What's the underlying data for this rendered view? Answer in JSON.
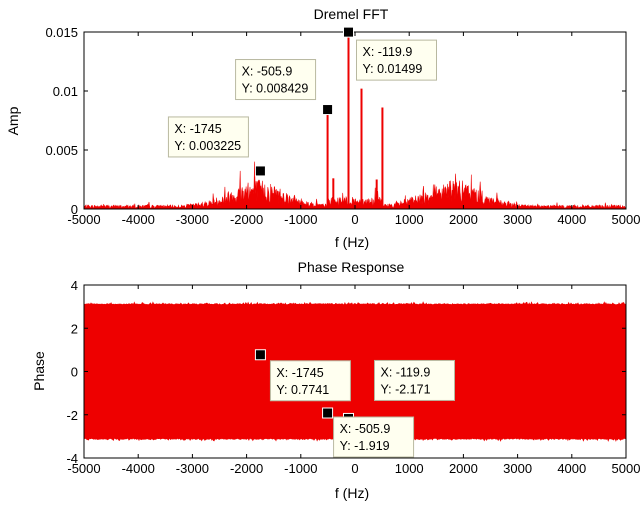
{
  "colors": {
    "signal": "#ee0000",
    "datatip_bg": "#fffff0",
    "marker": "#000000"
  },
  "chart_data": [
    {
      "type": "line",
      "title": "Dremel FFT",
      "xlabel": "f (Hz)",
      "ylabel": "Amp",
      "xlim": [
        -5000,
        5000
      ],
      "ylim": [
        0,
        0.015
      ],
      "xticks": [
        "-5000",
        "-4000",
        "-3000",
        "-2000",
        "-1000",
        "0",
        "1000",
        "2000",
        "3000",
        "4000",
        "5000"
      ],
      "yticks": [
        "0",
        "0.005",
        "0.01",
        "0.015"
      ],
      "grid": false,
      "peaks": [
        {
          "x": -505.9,
          "y": 0.008429
        },
        {
          "x": -400,
          "y": 0.0026
        },
        {
          "x": -119.9,
          "y": 0.01499
        },
        {
          "x": 119.9,
          "y": 0.0102
        },
        {
          "x": 400,
          "y": 0.0025
        },
        {
          "x": 505.9,
          "y": 0.0086
        }
      ],
      "datatips": [
        {
          "x_text": "X: -1745",
          "y_text": "Y: 0.003225",
          "x": -1745,
          "y": 0.003225
        },
        {
          "x_text": "X: -505.9",
          "y_text": "Y: 0.008429",
          "x": -505.9,
          "y": 0.008429
        },
        {
          "x_text": "X: -119.9",
          "y_text": "Y: 0.01499",
          "x": -119.9,
          "y": 0.01499
        }
      ]
    },
    {
      "type": "line",
      "title": "Phase Response",
      "xlabel": "f (Hz)",
      "ylabel": "Phase",
      "xlim": [
        -5000,
        5000
      ],
      "ylim": [
        -4,
        4
      ],
      "xticks": [
        "-5000",
        "-4000",
        "-3000",
        "-2000",
        "-1000",
        "0",
        "1000",
        "2000",
        "3000",
        "4000",
        "5000"
      ],
      "yticks": [
        "4",
        "2",
        "0",
        "-2",
        "-4"
      ],
      "grid": false,
      "band": [
        -3.1416,
        3.1416
      ],
      "datatips": [
        {
          "x_text": "X: -1745",
          "y_text": "Y: 0.7741",
          "x": -1745,
          "y": 0.7741
        },
        {
          "x_text": "X: -119.9",
          "y_text": "Y: -2.171",
          "x": -119.9,
          "y": -2.171
        },
        {
          "x_text": "X: -505.9",
          "y_text": "Y: -1.919",
          "x": -505.9,
          "y": -1.919
        }
      ]
    }
  ]
}
